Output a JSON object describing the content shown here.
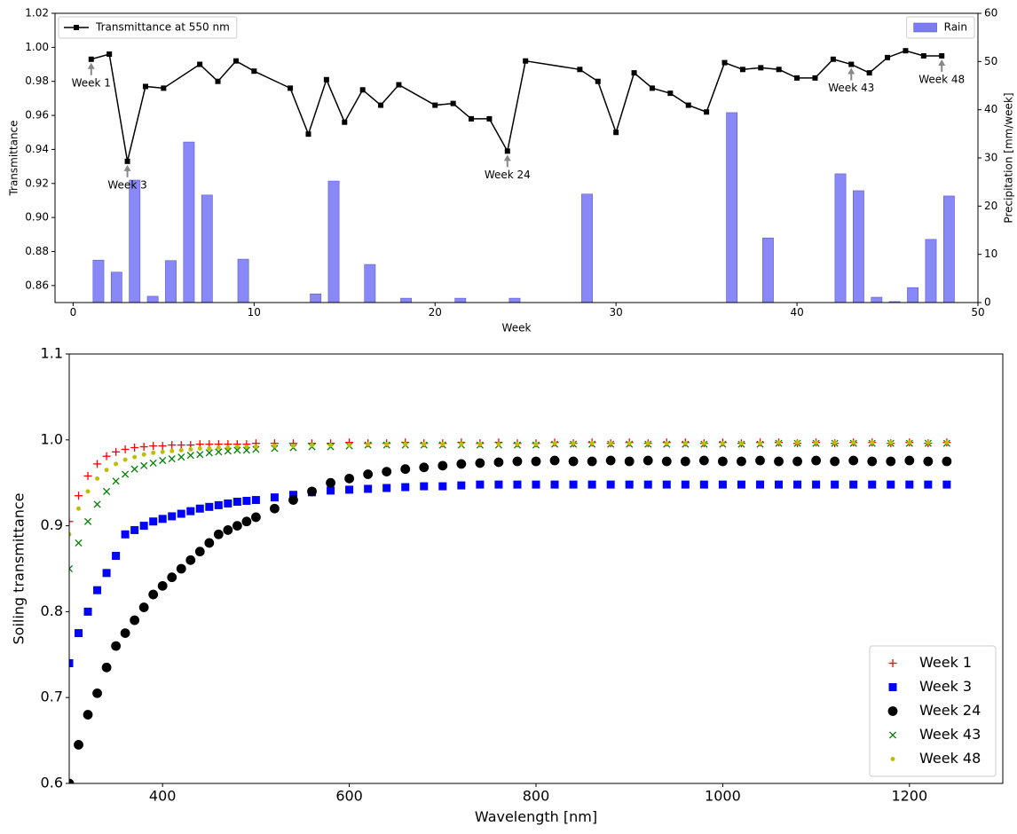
{
  "chart_data": [
    {
      "type": "combo",
      "xlabel": "Week",
      "ylabel": "Transmittance",
      "y2label": "Precipitation [mm/week]",
      "xlim": [
        -1,
        50
      ],
      "xticks": [
        0,
        10,
        20,
        30,
        40,
        50
      ],
      "ylim": [
        0.85,
        1.02
      ],
      "yticks": [
        0.86,
        0.88,
        {
          "value": 0.9,
          "label": "0.90"
        },
        0.92,
        0.94,
        0.96,
        0.98,
        {
          "value": 1,
          "label": "1.00"
        },
        1.02
      ],
      "y2lim": [
        0,
        60
      ],
      "y2ticks": [
        0,
        10,
        20,
        30,
        40,
        50,
        60
      ],
      "series": [
        {
          "name": "Transmittance at 550 nm",
          "type": "line",
          "color": "#000000",
          "legend": "upper left",
          "x": [
            1,
            2,
            3,
            4,
            5,
            7,
            8,
            9,
            10,
            12,
            13,
            14,
            15,
            16,
            17,
            18,
            20,
            21,
            22,
            23,
            24,
            25,
            28,
            29,
            30,
            31,
            32,
            33,
            34,
            35,
            36,
            37,
            38,
            39,
            40,
            41,
            42,
            43,
            44,
            45,
            46,
            47,
            48
          ],
          "values": [
            0.993,
            0.996,
            0.933,
            0.977,
            0.976,
            0.99,
            0.98,
            0.992,
            0.986,
            0.976,
            0.949,
            0.981,
            0.956,
            0.975,
            0.966,
            0.978,
            0.966,
            0.967,
            0.958,
            0.958,
            0.939,
            0.992,
            0.987,
            0.98,
            0.95,
            0.985,
            0.976,
            0.973,
            0.966,
            0.962,
            0.991,
            0.987,
            0.988,
            0.987,
            0.982,
            0.982,
            0.993,
            0.99,
            0.985,
            0.994,
            0.998,
            0.995,
            0.995
          ]
        },
        {
          "name": "Rain",
          "type": "bar",
          "axis": "y2",
          "color": "#7b7bf5",
          "legend": "upper right",
          "x": [
            1.4,
            2.4,
            3.4,
            4.4,
            5.4,
            6.4,
            7.4,
            9.4,
            13.4,
            14.4,
            16.4,
            18.4,
            21.4,
            24.4,
            28.4,
            36.4,
            38.4,
            42.4,
            43.4,
            44.4,
            45.4,
            46.4,
            47.4,
            48.4
          ],
          "values": [
            8.8,
            6.3,
            25.4,
            1.3,
            8.7,
            33.3,
            22.3,
            9.0,
            1.8,
            25.2,
            7.9,
            0.9,
            0.9,
            0.9,
            22.5,
            39.4,
            13.4,
            26.7,
            23.2,
            1.1,
            0.2,
            3.1,
            13.1,
            22.1
          ]
        }
      ],
      "annotations": [
        {
          "text": "Week 1",
          "x": 1,
          "y": 0.993
        },
        {
          "text": "Week 3",
          "x": 3,
          "y": 0.933
        },
        {
          "text": "Week 24",
          "x": 24,
          "y": 0.939
        },
        {
          "text": "Week 43",
          "x": 43,
          "y": 0.99
        },
        {
          "text": "Week 48",
          "x": 48,
          "y": 0.995
        }
      ]
    },
    {
      "type": "scatter",
      "xlabel": "Wavelength [nm]",
      "ylabel": "Soiling transmittance",
      "legend": "lower right",
      "xlim": [
        300,
        1300
      ],
      "xticks": [
        400,
        600,
        800,
        1000,
        1200
      ],
      "ylim": [
        0.6,
        1.1
      ],
      "yticks": [
        0.6,
        0.7,
        0.8,
        0.9,
        {
          "value": 1,
          "label": "1.0"
        },
        1.1
      ],
      "x": [
        300,
        310,
        320,
        330,
        340,
        350,
        360,
        370,
        380,
        390,
        400,
        410,
        420,
        430,
        440,
        450,
        460,
        470,
        480,
        490,
        500,
        520,
        540,
        560,
        580,
        600,
        620,
        640,
        660,
        680,
        700,
        720,
        740,
        760,
        780,
        800,
        820,
        840,
        860,
        880,
        900,
        920,
        940,
        960,
        980,
        1000,
        1020,
        1040,
        1060,
        1080,
        1100,
        1120,
        1140,
        1160,
        1180,
        1200,
        1220,
        1240
      ],
      "series": [
        {
          "name": "Week 1",
          "color": "#ff0000",
          "marker": "+",
          "values": [
            0.905,
            0.935,
            0.958,
            0.972,
            0.981,
            0.986,
            0.989,
            0.991,
            0.992,
            0.993,
            0.993,
            0.994,
            0.994,
            0.994,
            0.995,
            0.995,
            0.995,
            0.995,
            0.995,
            0.995,
            0.996,
            0.996,
            0.996,
            0.996,
            0.996,
            0.997,
            0.996,
            0.996,
            0.997,
            0.996,
            0.996,
            0.997,
            0.996,
            0.997,
            0.996,
            0.996,
            0.997,
            0.996,
            0.997,
            0.996,
            0.997,
            0.996,
            0.997,
            0.997,
            0.996,
            0.997,
            0.996,
            0.997,
            0.997,
            0.996,
            0.997,
            0.996,
            0.997,
            0.997,
            0.996,
            0.997,
            0.996,
            0.997
          ]
        },
        {
          "name": "Week 3",
          "color": "#0000ff",
          "marker": "s",
          "values": [
            0.74,
            0.775,
            0.8,
            0.825,
            0.845,
            0.865,
            0.89,
            0.895,
            0.9,
            0.905,
            0.908,
            0.911,
            0.914,
            0.917,
            0.92,
            0.922,
            0.924,
            0.926,
            0.928,
            0.929,
            0.93,
            0.933,
            0.936,
            0.939,
            0.941,
            0.942,
            0.943,
            0.944,
            0.945,
            0.946,
            0.946,
            0.947,
            0.948,
            0.948,
            0.948,
            0.948,
            0.948,
            0.948,
            0.948,
            0.948,
            0.948,
            0.948,
            0.948,
            0.948,
            0.948,
            0.948,
            0.948,
            0.948,
            0.948,
            0.948,
            0.948,
            0.948,
            0.948,
            0.948,
            0.948,
            0.948,
            0.948,
            0.948
          ]
        },
        {
          "name": "Week 24",
          "color": "#000000",
          "marker": "o",
          "values": [
            0.6,
            0.645,
            0.68,
            0.705,
            0.735,
            0.76,
            0.775,
            0.79,
            0.805,
            0.82,
            0.83,
            0.84,
            0.85,
            0.86,
            0.87,
            0.88,
            0.89,
            0.895,
            0.9,
            0.905,
            0.91,
            0.92,
            0.93,
            0.94,
            0.95,
            0.955,
            0.96,
            0.963,
            0.966,
            0.968,
            0.97,
            0.972,
            0.973,
            0.974,
            0.975,
            0.975,
            0.976,
            0.975,
            0.975,
            0.976,
            0.975,
            0.976,
            0.975,
            0.975,
            0.976,
            0.975,
            0.975,
            0.976,
            0.975,
            0.975,
            0.976,
            0.975,
            0.976,
            0.975,
            0.975,
            0.976,
            0.975,
            0.975
          ]
        },
        {
          "name": "Week 43",
          "color": "#008000",
          "marker": "x",
          "values": [
            0.85,
            0.88,
            0.905,
            0.925,
            0.94,
            0.952,
            0.96,
            0.966,
            0.97,
            0.973,
            0.976,
            0.978,
            0.98,
            0.982,
            0.983,
            0.985,
            0.986,
            0.987,
            0.988,
            0.988,
            0.989,
            0.99,
            0.991,
            0.992,
            0.992,
            0.993,
            0.994,
            0.994,
            0.994,
            0.994,
            0.994,
            0.994,
            0.994,
            0.994,
            0.994,
            0.994,
            0.995,
            0.995,
            0.995,
            0.995,
            0.995,
            0.995,
            0.995,
            0.995,
            0.995,
            0.995,
            0.995,
            0.995,
            0.996,
            0.996,
            0.996,
            0.996,
            0.996,
            0.996,
            0.996,
            0.996,
            0.996,
            0.996
          ]
        },
        {
          "name": "Week 48",
          "color": "#bfbf00",
          "marker": ".",
          "values": [
            0.89,
            0.92,
            0.94,
            0.955,
            0.965,
            0.972,
            0.977,
            0.98,
            0.983,
            0.985,
            0.986,
            0.987,
            0.988,
            0.989,
            0.99,
            0.99,
            0.991,
            0.991,
            0.992,
            0.992,
            0.992,
            0.993,
            0.993,
            0.994,
            0.994,
            0.994,
            0.995,
            0.995,
            0.995,
            0.995,
            0.995,
            0.995,
            0.995,
            0.995,
            0.995,
            0.995,
            0.996,
            0.996,
            0.996,
            0.996,
            0.996,
            0.996,
            0.996,
            0.996,
            0.996,
            0.996,
            0.996,
            0.996,
            0.997,
            0.997,
            0.997,
            0.997,
            0.997,
            0.997,
            0.997,
            0.997,
            0.997,
            0.997
          ]
        }
      ]
    }
  ]
}
